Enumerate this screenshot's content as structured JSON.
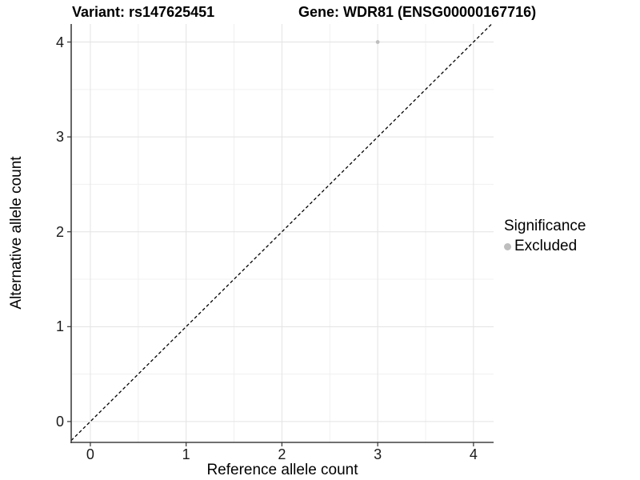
{
  "header": {
    "variant_title": "Variant: rs147625451",
    "gene_title": "Gene: WDR81 (ENSG00000167716)"
  },
  "chart_data": {
    "type": "scatter",
    "xlabel": "Reference allele count",
    "ylabel": "Alternative allele count",
    "xlim": [
      -0.2,
      4.21
    ],
    "ylim": [
      -0.22,
      4.19
    ],
    "x_ticks": [
      0,
      1,
      2,
      3,
      4
    ],
    "y_ticks": [
      0,
      1,
      2,
      3,
      4
    ],
    "x_minor": [
      0.5,
      1.5,
      2.5,
      3.5
    ],
    "y_minor": [
      0.5,
      1.5,
      2.5,
      3.5
    ],
    "grid": "on",
    "points": [
      {
        "x": 3,
        "y": 4,
        "series": "Excluded"
      }
    ],
    "identity_line": {
      "type": "abline",
      "slope": 1,
      "intercept": 0,
      "style": "dashed"
    },
    "legend": {
      "position": "right",
      "title": "Significance",
      "items": [
        {
          "label": "Excluded",
          "color": "#bebebe"
        }
      ]
    },
    "colors": {
      "point": "#bebebe",
      "grid_major": "#e3e3e3",
      "grid_minor": "#f0f0f0",
      "axis_line": "#404040",
      "tick_mark": "#333333",
      "identity_line": "#000000",
      "background": "#ffffff"
    }
  }
}
